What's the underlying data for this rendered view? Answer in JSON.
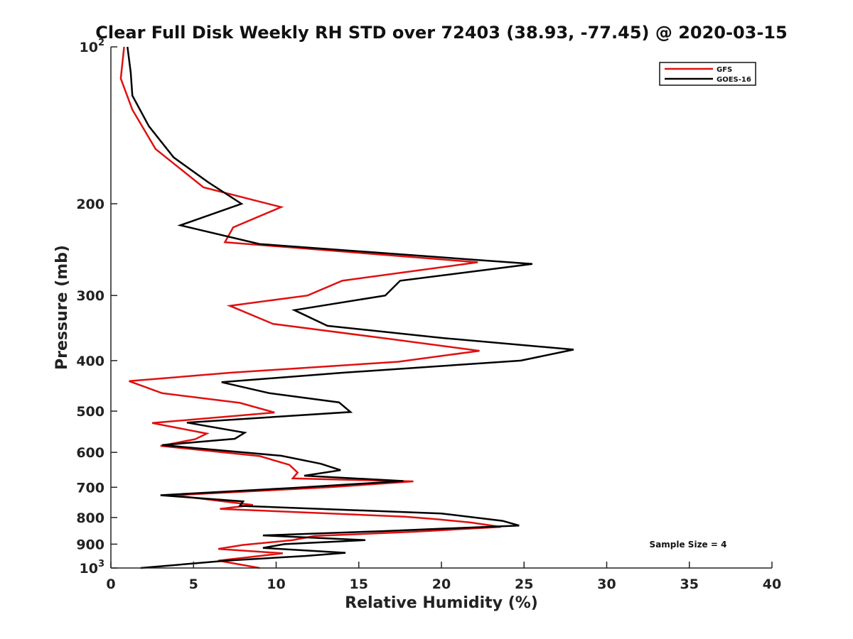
{
  "chart_data": {
    "type": "line",
    "title": "Clear Full Disk Weekly RH STD over 72403 (38.93, -77.45) @ 2020-03-15",
    "xlabel": "Relative Humidity (%)",
    "ylabel": "Pressure (mb)",
    "xlim": [
      0,
      40
    ],
    "ylim": [
      100,
      1000
    ],
    "y_scale": "log",
    "y_reversed": true,
    "grid": false,
    "legend_position": "top-right",
    "x_ticks": [
      {
        "value": 0,
        "label": "0"
      },
      {
        "value": 5,
        "label": "5"
      },
      {
        "value": 10,
        "label": "10"
      },
      {
        "value": 15,
        "label": "15"
      },
      {
        "value": 20,
        "label": "20"
      },
      {
        "value": 25,
        "label": "25"
      },
      {
        "value": 30,
        "label": "30"
      },
      {
        "value": 35,
        "label": "35"
      },
      {
        "value": 40,
        "label": "40"
      }
    ],
    "y_ticks": [
      {
        "value": 100,
        "base": "10",
        "exp": "2"
      },
      {
        "value": 200,
        "base": "200",
        "exp": ""
      },
      {
        "value": 300,
        "base": "300",
        "exp": ""
      },
      {
        "value": 400,
        "base": "400",
        "exp": ""
      },
      {
        "value": 500,
        "base": "500",
        "exp": ""
      },
      {
        "value": 600,
        "base": "600",
        "exp": ""
      },
      {
        "value": 700,
        "base": "700",
        "exp": ""
      },
      {
        "value": 800,
        "base": "800",
        "exp": ""
      },
      {
        "value": 900,
        "base": "900",
        "exp": ""
      },
      {
        "value": 1000,
        "base": "10",
        "exp": "3"
      }
    ],
    "annotation": "Sample Size = 4",
    "series": [
      {
        "name": "GFS",
        "color": "#e01010",
        "points": [
          [
            0.8,
            100
          ],
          [
            0.6,
            115
          ],
          [
            1.3,
            132
          ],
          [
            2.7,
            157
          ],
          [
            5.6,
            186
          ],
          [
            10.3,
            203
          ],
          [
            7.4,
            222
          ],
          [
            6.9,
            237
          ],
          [
            22.2,
            259
          ],
          [
            14.0,
            281
          ],
          [
            11.9,
            300
          ],
          [
            7.2,
            314
          ],
          [
            9.8,
            340
          ],
          [
            17.0,
            364
          ],
          [
            22.3,
            383
          ],
          [
            17.4,
            402
          ],
          [
            7.2,
            422
          ],
          [
            1.1,
            438
          ],
          [
            3.1,
            462
          ],
          [
            7.8,
            482
          ],
          [
            9.9,
            503
          ],
          [
            2.5,
            527
          ],
          [
            5.8,
            552
          ],
          [
            5.1,
            566
          ],
          [
            3.0,
            583
          ],
          [
            9.0,
            610
          ],
          [
            10.8,
            634
          ],
          [
            11.3,
            656
          ],
          [
            11.0,
            673
          ],
          [
            18.3,
            682
          ],
          [
            13.2,
            700
          ],
          [
            3.8,
            725
          ],
          [
            8.6,
            757
          ],
          [
            6.6,
            770
          ],
          [
            17.8,
            797
          ],
          [
            19.7,
            806
          ],
          [
            21.8,
            818
          ],
          [
            23.6,
            834
          ],
          [
            18.4,
            852
          ],
          [
            12.3,
            868
          ],
          [
            11.0,
            884
          ],
          [
            8.0,
            903
          ],
          [
            6.5,
            919
          ],
          [
            10.4,
            937
          ],
          [
            6.5,
            968
          ],
          [
            9.0,
            1000
          ]
        ]
      },
      {
        "name": "GOES-16",
        "color": "#000000",
        "points": [
          [
            1.0,
            100
          ],
          [
            1.2,
            112
          ],
          [
            1.3,
            124
          ],
          [
            2.3,
            142
          ],
          [
            3.8,
            163
          ],
          [
            5.9,
            182
          ],
          [
            7.9,
            200
          ],
          [
            4.2,
            220
          ],
          [
            9.0,
            239
          ],
          [
            25.5,
            261
          ],
          [
            17.5,
            281
          ],
          [
            16.6,
            300
          ],
          [
            11.1,
            320
          ],
          [
            13.1,
            343
          ],
          [
            20.1,
            362
          ],
          [
            28.0,
            381
          ],
          [
            24.8,
            400
          ],
          [
            14.0,
            422
          ],
          [
            6.7,
            440
          ],
          [
            9.6,
            462
          ],
          [
            13.8,
            481
          ],
          [
            14.5,
            502
          ],
          [
            4.6,
            526
          ],
          [
            8.1,
            550
          ],
          [
            7.5,
            565
          ],
          [
            3.1,
            581
          ],
          [
            10.3,
            609
          ],
          [
            12.7,
            631
          ],
          [
            13.9,
            649
          ],
          [
            11.7,
            665
          ],
          [
            17.7,
            681
          ],
          [
            11.0,
            702
          ],
          [
            3.0,
            725
          ],
          [
            8.0,
            745
          ],
          [
            7.8,
            760
          ],
          [
            20.0,
            786
          ],
          [
            23.7,
            812
          ],
          [
            24.7,
            829
          ],
          [
            16.3,
            850
          ],
          [
            9.2,
            866
          ],
          [
            15.4,
            884
          ],
          [
            10.5,
            900
          ],
          [
            9.2,
            915
          ],
          [
            14.2,
            935
          ],
          [
            11.8,
            948
          ],
          [
            7.0,
            968
          ],
          [
            1.8,
            1000
          ]
        ]
      }
    ]
  }
}
